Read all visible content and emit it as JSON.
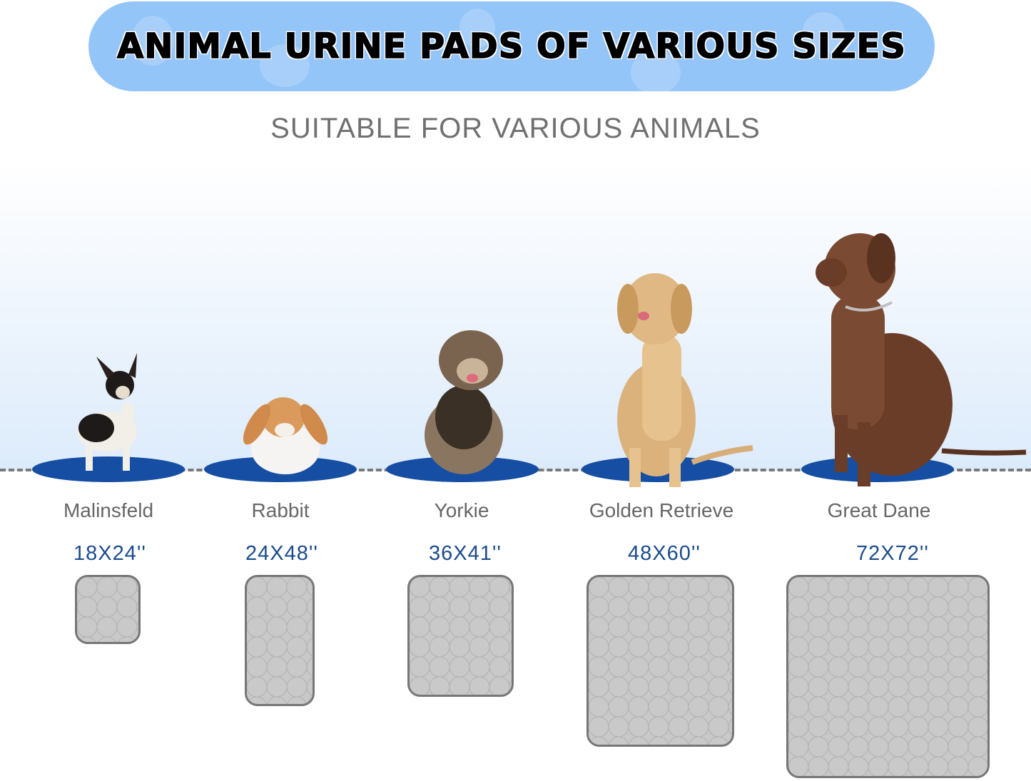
{
  "banner": {
    "title": "ANIMAL URINE PADS OF VARIOUS SIZES",
    "color": "#94c5f8"
  },
  "subtitle": "SUITABLE FOR VARIOUS ANIMALS",
  "colors": {
    "pad_fill": "#c9c9c9",
    "oval": "#154ea3",
    "size_text": "#1b4b8c"
  },
  "animals": [
    {
      "name": "Malinsfeld",
      "size": "18X24''",
      "icon": "chihuahua-photo"
    },
    {
      "name": "Rabbit",
      "size": "24X48''",
      "icon": "rabbit-photo"
    },
    {
      "name": "Yorkie",
      "size": "36X41''",
      "icon": "yorkie-photo"
    },
    {
      "name": "Golden Retrieve",
      "size": "48X60''",
      "icon": "golden-retriever-photo"
    },
    {
      "name": "Great Dane",
      "size": "72X72''",
      "icon": "great-dane-photo"
    }
  ]
}
